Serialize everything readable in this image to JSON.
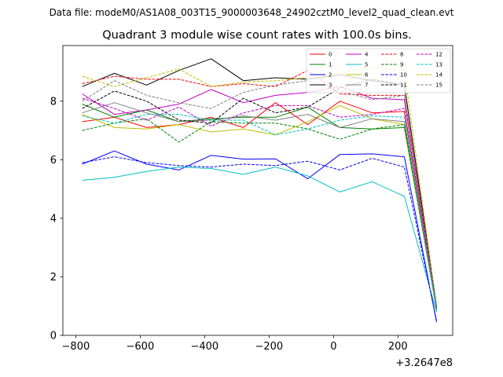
{
  "chart_data": {
    "type": "line",
    "suptitle": "Data file: modeM0/AS1A08_003T15_9000003648_24902cztM0_level2_quad_clean.evt",
    "title": "Quadrant 3 module wise count rates with 100.0s bins.",
    "xlabel": "",
    "ylabel": "",
    "x_offset_label": "+3.2647e8",
    "xlim": [
      -840,
      370
    ],
    "ylim": [
      0,
      9.9
    ],
    "xticks": [
      -800,
      -600,
      -400,
      -200,
      0,
      200
    ],
    "xtick_labels": [
      "−800",
      "−600",
      "−400",
      "−200",
      "0",
      "200"
    ],
    "yticks": [
      0,
      2,
      4,
      6,
      8
    ],
    "ytick_labels": [
      "0",
      "2",
      "4",
      "6",
      "8"
    ],
    "legend_position": "top-right",
    "x": [
      -780,
      -680,
      -580,
      -480,
      -380,
      -280,
      -180,
      -80,
      20,
      120,
      220,
      320
    ],
    "series": [
      {
        "name": "0",
        "color": "#ff0000",
        "dash": "solid",
        "values": [
          7.3,
          7.45,
          7.1,
          7.2,
          7.45,
          7.1,
          7.95,
          7.2,
          8.0,
          7.6,
          7.65,
          0.95
        ]
      },
      {
        "name": "1",
        "color": "#008000",
        "dash": "solid",
        "values": [
          7.9,
          7.45,
          7.7,
          7.3,
          7.4,
          7.45,
          7.45,
          7.8,
          7.1,
          7.05,
          7.1,
          0.9
        ]
      },
      {
        "name": "2",
        "color": "#0000ff",
        "dash": "solid",
        "values": [
          5.85,
          6.3,
          5.85,
          5.65,
          6.15,
          6.02,
          6.03,
          5.35,
          6.18,
          6.2,
          6.1,
          0.45
        ]
      },
      {
        "name": "3",
        "color": "#000000",
        "dash": "solid",
        "values": [
          8.5,
          8.95,
          8.55,
          9.05,
          9.45,
          8.7,
          8.8,
          8.75,
          8.9,
          8.7,
          8.55,
          0.95
        ]
      },
      {
        "name": "4",
        "color": "#bf00bf",
        "dash": "solid",
        "values": [
          8.25,
          7.55,
          7.7,
          7.9,
          8.4,
          7.95,
          8.2,
          8.3,
          8.5,
          8.1,
          8.05,
          1.0
        ]
      },
      {
        "name": "5",
        "color": "#00bfbf",
        "dash": "solid",
        "values": [
          5.3,
          5.4,
          5.6,
          5.75,
          5.7,
          5.5,
          5.75,
          5.45,
          4.9,
          5.25,
          4.75,
          0.8
        ]
      },
      {
        "name": "6",
        "color": "#bfbf00",
        "dash": "solid",
        "values": [
          7.55,
          7.1,
          7.05,
          7.2,
          6.95,
          7.05,
          6.85,
          7.3,
          7.85,
          7.4,
          7.2,
          0.85
        ]
      },
      {
        "name": "7",
        "color": "#808080",
        "dash": "solid",
        "values": [
          7.6,
          7.95,
          7.6,
          7.3,
          7.35,
          7.5,
          7.35,
          7.55,
          7.1,
          7.4,
          7.3,
          1.0
        ]
      },
      {
        "name": "8",
        "color": "#ff0000",
        "dash": "dashed",
        "values": [
          8.6,
          8.85,
          8.75,
          8.75,
          8.5,
          8.6,
          8.5,
          9.05,
          8.25,
          8.2,
          8.2,
          1.0
        ]
      },
      {
        "name": "9",
        "color": "#008000",
        "dash": "dashed",
        "values": [
          7.0,
          7.25,
          7.4,
          6.6,
          7.3,
          7.25,
          7.25,
          7.05,
          6.7,
          7.05,
          7.2,
          0.9
        ]
      },
      {
        "name": "10",
        "color": "#0000ff",
        "dash": "dashed",
        "values": [
          5.9,
          6.1,
          5.9,
          5.8,
          5.75,
          5.85,
          5.8,
          5.95,
          5.65,
          6.05,
          5.75,
          0.5
        ]
      },
      {
        "name": "11",
        "color": "#000000",
        "dash": "dashed",
        "values": [
          7.75,
          8.35,
          8.0,
          7.35,
          7.25,
          8.1,
          7.6,
          7.8,
          8.45,
          8.75,
          8.55,
          1.0
        ]
      },
      {
        "name": "12",
        "color": "#bf00bf",
        "dash": "dashed",
        "values": [
          8.1,
          7.75,
          7.35,
          7.8,
          7.15,
          7.6,
          7.85,
          7.85,
          7.45,
          7.55,
          7.75,
          0.95
        ]
      },
      {
        "name": "13",
        "color": "#00bfbf",
        "dash": "dashed",
        "values": [
          7.5,
          7.25,
          7.55,
          7.55,
          7.35,
          7.35,
          6.85,
          7.05,
          7.35,
          7.5,
          7.45,
          0.85
        ]
      },
      {
        "name": "14",
        "color": "#bfbf00",
        "dash": "dashed",
        "values": [
          8.85,
          8.5,
          8.8,
          9.1,
          8.5,
          8.65,
          8.7,
          8.8,
          8.95,
          9.15,
          9.05,
          1.0
        ]
      },
      {
        "name": "15",
        "color": "#808080",
        "dash": "dashed",
        "values": [
          8.0,
          8.7,
          8.2,
          7.95,
          7.75,
          8.3,
          8.55,
          8.7,
          8.35,
          8.05,
          8.2,
          1.0
        ]
      }
    ]
  }
}
